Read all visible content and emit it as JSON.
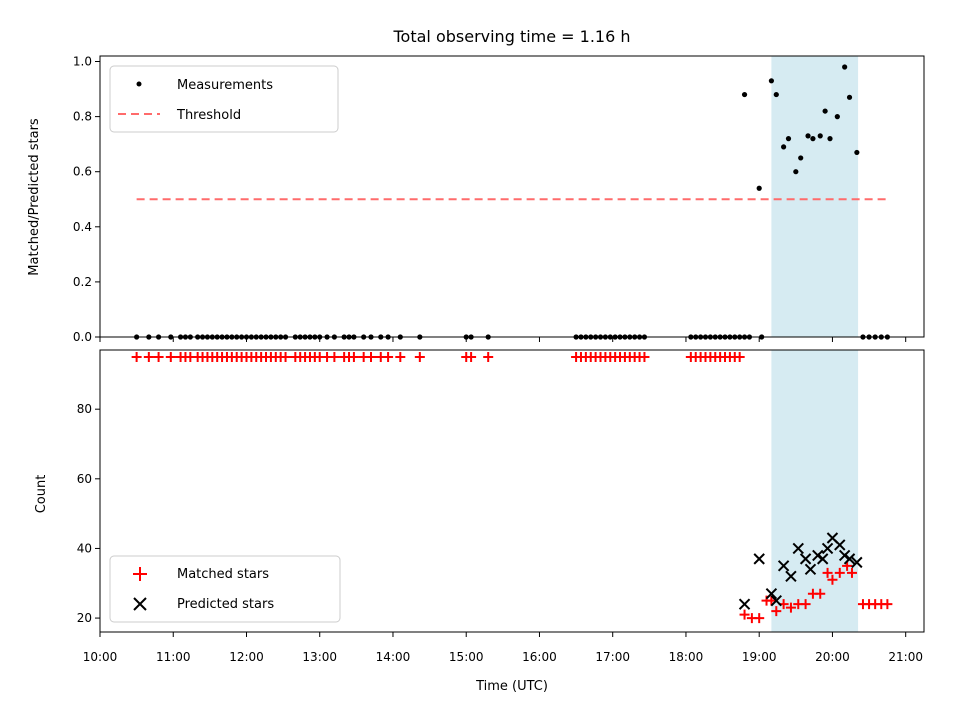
{
  "chart_data": [
    {
      "type": "scatter",
      "title": "Total observing time = 1.16 h",
      "xlabel": "",
      "ylabel": "Matched/Predicted stars",
      "xlim": [
        "10:00",
        "21:15"
      ],
      "ylim": [
        0.0,
        1.02
      ],
      "yticks": [
        "0.0",
        "0.2",
        "0.4",
        "0.6",
        "0.8",
        "1.0"
      ],
      "shaded_span": [
        "19:10",
        "20:21"
      ],
      "shaded_color": "#add8e6",
      "legend": {
        "placement": "upper left",
        "entries": [
          "Measurements",
          "Threshold"
        ]
      },
      "threshold": {
        "name": "Threshold",
        "value": 0.5,
        "x_range": [
          "10:30",
          "20:45"
        ],
        "color": "#ff6b6b"
      },
      "series": [
        {
          "name": "Measurements",
          "color": "#000000",
          "points": [
            [
              "10:30",
              0
            ],
            [
              "10:40",
              0
            ],
            [
              "10:48",
              0
            ],
            [
              "10:58",
              0
            ],
            [
              "11:06",
              0
            ],
            [
              "11:10",
              0
            ],
            [
              "11:14",
              0
            ],
            [
              "11:20",
              0
            ],
            [
              "11:24",
              0
            ],
            [
              "11:28",
              0
            ],
            [
              "11:32",
              0
            ],
            [
              "11:36",
              0
            ],
            [
              "11:40",
              0
            ],
            [
              "11:44",
              0
            ],
            [
              "11:48",
              0
            ],
            [
              "11:52",
              0
            ],
            [
              "11:56",
              0
            ],
            [
              "12:00",
              0
            ],
            [
              "12:04",
              0
            ],
            [
              "12:08",
              0
            ],
            [
              "12:12",
              0
            ],
            [
              "12:16",
              0
            ],
            [
              "12:20",
              0
            ],
            [
              "12:24",
              0
            ],
            [
              "12:28",
              0
            ],
            [
              "12:32",
              0
            ],
            [
              "12:40",
              0
            ],
            [
              "12:44",
              0
            ],
            [
              "12:48",
              0
            ],
            [
              "12:52",
              0
            ],
            [
              "12:56",
              0
            ],
            [
              "13:00",
              0
            ],
            [
              "13:06",
              0
            ],
            [
              "13:12",
              0
            ],
            [
              "13:20",
              0
            ],
            [
              "13:24",
              0
            ],
            [
              "13:28",
              0
            ],
            [
              "13:36",
              0
            ],
            [
              "13:42",
              0
            ],
            [
              "13:50",
              0
            ],
            [
              "13:56",
              0
            ],
            [
              "14:06",
              0
            ],
            [
              "14:22",
              0
            ],
            [
              "15:00",
              0
            ],
            [
              "15:04",
              0
            ],
            [
              "15:18",
              0
            ],
            [
              "16:30",
              0
            ],
            [
              "16:34",
              0
            ],
            [
              "16:38",
              0
            ],
            [
              "16:42",
              0
            ],
            [
              "16:46",
              0
            ],
            [
              "16:50",
              0
            ],
            [
              "16:54",
              0
            ],
            [
              "16:58",
              0
            ],
            [
              "17:02",
              0
            ],
            [
              "17:06",
              0
            ],
            [
              "17:10",
              0
            ],
            [
              "17:14",
              0
            ],
            [
              "17:18",
              0
            ],
            [
              "17:22",
              0
            ],
            [
              "17:26",
              0
            ],
            [
              "18:04",
              0
            ],
            [
              "18:08",
              0
            ],
            [
              "18:12",
              0
            ],
            [
              "18:16",
              0
            ],
            [
              "18:20",
              0
            ],
            [
              "18:24",
              0
            ],
            [
              "18:28",
              0
            ],
            [
              "18:32",
              0
            ],
            [
              "18:36",
              0
            ],
            [
              "18:40",
              0
            ],
            [
              "18:44",
              0
            ],
            [
              "18:48",
              0
            ],
            [
              "18:52",
              0
            ],
            [
              "19:02",
              0
            ],
            [
              "18:48",
              0.88
            ],
            [
              "19:00",
              0.54
            ],
            [
              "19:10",
              0.93
            ],
            [
              "19:14",
              0.88
            ],
            [
              "19:20",
              0.69
            ],
            [
              "19:24",
              0.72
            ],
            [
              "19:30",
              0.6
            ],
            [
              "19:34",
              0.65
            ],
            [
              "19:40",
              0.73
            ],
            [
              "19:44",
              0.72
            ],
            [
              "19:50",
              0.73
            ],
            [
              "19:54",
              0.82
            ],
            [
              "19:58",
              0.72
            ],
            [
              "20:04",
              0.8
            ],
            [
              "20:10",
              0.98
            ],
            [
              "20:14",
              0.87
            ],
            [
              "20:20",
              0.67
            ],
            [
              "20:25",
              0
            ],
            [
              "20:30",
              0
            ],
            [
              "20:35",
              0
            ],
            [
              "20:40",
              0
            ],
            [
              "20:45",
              0
            ]
          ]
        }
      ]
    },
    {
      "type": "scatter",
      "title": "",
      "xlabel": "Time (UTC)",
      "ylabel": "Count",
      "xlim": [
        "10:00",
        "21:15"
      ],
      "ylim": [
        16,
        97
      ],
      "yticks": [
        "20",
        "40",
        "60",
        "80"
      ],
      "xticks": [
        "10:00",
        "11:00",
        "12:00",
        "13:00",
        "14:00",
        "15:00",
        "16:00",
        "17:00",
        "18:00",
        "19:00",
        "20:00",
        "21:00"
      ],
      "shaded_span": [
        "19:10",
        "20:21"
      ],
      "shaded_color": "#add8e6",
      "legend": {
        "placement": "lower left",
        "entries": [
          "Matched stars",
          "Predicted stars"
        ]
      },
      "series": [
        {
          "name": "Matched stars",
          "marker": "plus",
          "color": "#ff0000",
          "points": [
            [
              "10:30",
              95
            ],
            [
              "10:40",
              95
            ],
            [
              "10:48",
              95
            ],
            [
              "10:58",
              95
            ],
            [
              "11:06",
              95
            ],
            [
              "11:10",
              95
            ],
            [
              "11:14",
              95
            ],
            [
              "11:20",
              95
            ],
            [
              "11:24",
              95
            ],
            [
              "11:28",
              95
            ],
            [
              "11:32",
              95
            ],
            [
              "11:36",
              95
            ],
            [
              "11:40",
              95
            ],
            [
              "11:44",
              95
            ],
            [
              "11:48",
              95
            ],
            [
              "11:52",
              95
            ],
            [
              "11:56",
              95
            ],
            [
              "12:00",
              95
            ],
            [
              "12:04",
              95
            ],
            [
              "12:08",
              95
            ],
            [
              "12:12",
              95
            ],
            [
              "12:16",
              95
            ],
            [
              "12:20",
              95
            ],
            [
              "12:24",
              95
            ],
            [
              "12:28",
              95
            ],
            [
              "12:32",
              95
            ],
            [
              "12:40",
              95
            ],
            [
              "12:44",
              95
            ],
            [
              "12:48",
              95
            ],
            [
              "12:52",
              95
            ],
            [
              "12:56",
              95
            ],
            [
              "13:00",
              95
            ],
            [
              "13:06",
              95
            ],
            [
              "13:12",
              95
            ],
            [
              "13:20",
              95
            ],
            [
              "13:24",
              95
            ],
            [
              "13:28",
              95
            ],
            [
              "13:36",
              95
            ],
            [
              "13:42",
              95
            ],
            [
              "13:50",
              95
            ],
            [
              "13:56",
              95
            ],
            [
              "14:06",
              95
            ],
            [
              "14:22",
              95
            ],
            [
              "15:00",
              95
            ],
            [
              "15:04",
              95
            ],
            [
              "15:18",
              95
            ],
            [
              "16:30",
              95
            ],
            [
              "16:34",
              95
            ],
            [
              "16:38",
              95
            ],
            [
              "16:42",
              95
            ],
            [
              "16:46",
              95
            ],
            [
              "16:50",
              95
            ],
            [
              "16:54",
              95
            ],
            [
              "16:58",
              95
            ],
            [
              "17:02",
              95
            ],
            [
              "17:06",
              95
            ],
            [
              "17:10",
              95
            ],
            [
              "17:14",
              95
            ],
            [
              "17:18",
              95
            ],
            [
              "17:22",
              95
            ],
            [
              "17:26",
              95
            ],
            [
              "18:04",
              95
            ],
            [
              "18:08",
              95
            ],
            [
              "18:12",
              95
            ],
            [
              "18:16",
              95
            ],
            [
              "18:20",
              95
            ],
            [
              "18:24",
              95
            ],
            [
              "18:28",
              95
            ],
            [
              "18:32",
              95
            ],
            [
              "18:36",
              95
            ],
            [
              "18:40",
              95
            ],
            [
              "18:44",
              95
            ],
            [
              "18:48",
              21
            ],
            [
              "18:54",
              20
            ],
            [
              "19:00",
              20
            ],
            [
              "19:06",
              25
            ],
            [
              "19:10",
              25
            ],
            [
              "19:14",
              22
            ],
            [
              "19:20",
              24
            ],
            [
              "19:26",
              23
            ],
            [
              "19:32",
              24
            ],
            [
              "19:38",
              24
            ],
            [
              "19:44",
              27
            ],
            [
              "19:50",
              27
            ],
            [
              "19:56",
              33
            ],
            [
              "20:00",
              31
            ],
            [
              "20:06",
              33
            ],
            [
              "20:12",
              35
            ],
            [
              "20:16",
              33
            ],
            [
              "20:25",
              24
            ],
            [
              "20:30",
              24
            ],
            [
              "20:35",
              24
            ],
            [
              "20:40",
              24
            ],
            [
              "20:45",
              24
            ]
          ]
        },
        {
          "name": "Predicted stars",
          "marker": "x",
          "color": "#000000",
          "points": [
            [
              "18:48",
              24
            ],
            [
              "19:00",
              37
            ],
            [
              "19:10",
              27
            ],
            [
              "19:14",
              25
            ],
            [
              "19:20",
              35
            ],
            [
              "19:26",
              32
            ],
            [
              "19:32",
              40
            ],
            [
              "19:38",
              37
            ],
            [
              "19:42",
              34
            ],
            [
              "19:48",
              38
            ],
            [
              "19:52",
              37
            ],
            [
              "19:56",
              40
            ],
            [
              "20:00",
              43
            ],
            [
              "20:06",
              41
            ],
            [
              "20:10",
              38
            ],
            [
              "20:14",
              37
            ],
            [
              "20:20",
              36
            ]
          ]
        }
      ]
    }
  ]
}
